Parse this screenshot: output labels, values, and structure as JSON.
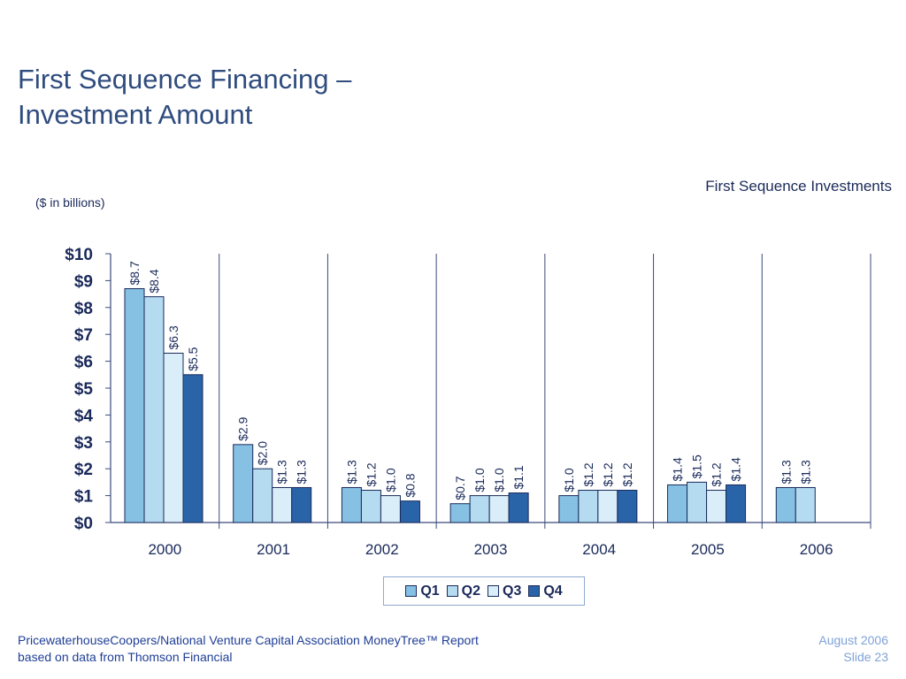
{
  "slide": {
    "title_line1": "First Sequence Financing –",
    "title_line2": "Investment Amount",
    "units_note": "($ in billions)"
  },
  "footer": {
    "source_line1": "PricewaterhouseCoopers/National Venture Capital Association MoneyTree™ Report",
    "source_line2": "based on data from Thomson Financial",
    "date": "August 2006",
    "slide_number": "Slide 23"
  },
  "chart_data": {
    "type": "bar",
    "title": "First Sequence Investments",
    "xlabel": "",
    "ylabel": "",
    "categories": [
      "2000",
      "2001",
      "2002",
      "2003",
      "2004",
      "2005",
      "2006"
    ],
    "ylim": [
      0,
      10
    ],
    "yticks": [
      0,
      1,
      2,
      3,
      4,
      5,
      6,
      7,
      8,
      9,
      10
    ],
    "ytick_labels": [
      "$0",
      "$1",
      "$2",
      "$3",
      "$4",
      "$5",
      "$6",
      "$7",
      "$8",
      "$9",
      "$10"
    ],
    "legend_position": "bottom",
    "series": [
      {
        "name": "Q1",
        "color": "#86c1e3",
        "values": [
          8.7,
          2.9,
          1.3,
          0.7,
          1.0,
          1.4,
          1.3
        ],
        "labels": [
          "$8.7",
          "$2.9",
          "$1.3",
          "$0.7",
          "$1.0",
          "$1.4",
          "$1.3"
        ]
      },
      {
        "name": "Q2",
        "color": "#b4dbef",
        "values": [
          8.4,
          2.0,
          1.2,
          1.0,
          1.2,
          1.5,
          1.3
        ],
        "labels": [
          "$8.4",
          "$2.0",
          "$1.2",
          "$1.0",
          "$1.2",
          "$1.5",
          "$1.3"
        ]
      },
      {
        "name": "Q3",
        "color": "#d9eef9",
        "values": [
          6.3,
          1.3,
          1.0,
          1.0,
          1.2,
          1.2,
          null
        ],
        "labels": [
          "$6.3",
          "$1.3",
          "$1.0",
          "$1.0",
          "$1.2",
          "$1.2",
          null
        ]
      },
      {
        "name": "Q4",
        "color": "#2a64a8",
        "values": [
          5.5,
          1.3,
          0.8,
          1.1,
          1.2,
          1.4,
          null
        ],
        "labels": [
          "$5.5",
          "$1.3",
          "$0.8",
          "$1.1",
          "$1.2",
          "$1.4",
          null
        ]
      }
    ]
  }
}
